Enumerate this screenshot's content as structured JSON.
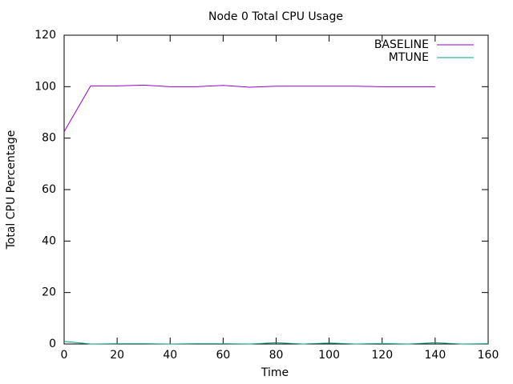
{
  "chart_data": {
    "type": "line",
    "title": "Node 0 Total CPU Usage",
    "x_label": "Time",
    "y_label": "Total CPU Percentage",
    "x": [
      0,
      10,
      20,
      30,
      40,
      50,
      60,
      70,
      80,
      90,
      100,
      110,
      120,
      130,
      140,
      150,
      160
    ],
    "series": [
      {
        "name": "BASELINE",
        "color": "#9400d3",
        "values": [
          82.5,
          100.3,
          100.3,
          100.6,
          100,
          100,
          100.5,
          99.8,
          100.2,
          100.2,
          100.2,
          100.2,
          100,
          100,
          100,
          null,
          null
        ]
      },
      {
        "name": "MTUNE",
        "color": "#009e73",
        "values": [
          1,
          0,
          0.1,
          0.1,
          0,
          0.1,
          0.1,
          0,
          0.5,
          0,
          0.4,
          0,
          0.2,
          0,
          0.5,
          0,
          0.1
        ]
      }
    ],
    "xlim": [
      0,
      160
    ],
    "ylim": [
      0,
      120
    ],
    "xticks": [
      0,
      20,
      40,
      60,
      80,
      100,
      120,
      140,
      160
    ],
    "yticks": [
      0,
      20,
      40,
      60,
      80,
      100,
      120
    ],
    "legend": "top-right"
  }
}
